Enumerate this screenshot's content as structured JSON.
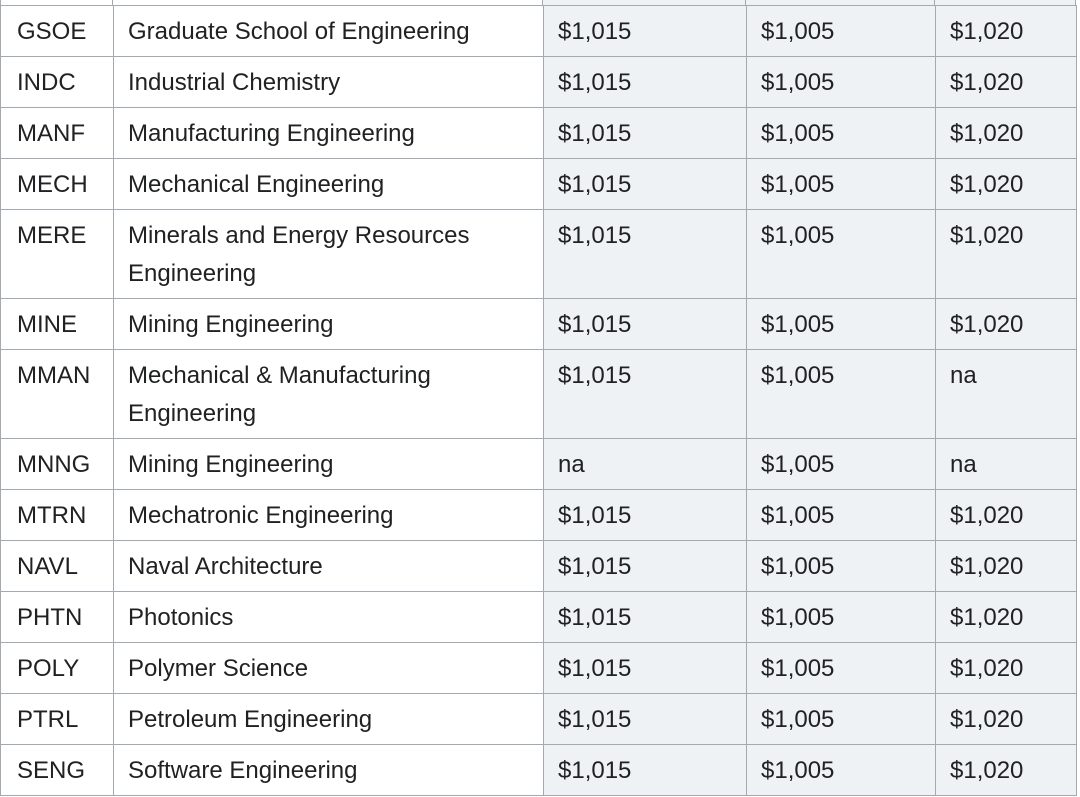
{
  "table": {
    "rows": [
      [
        "GSOE",
        "Graduate School of Engineering",
        "$1,015",
        "$1,005",
        "$1,020"
      ],
      [
        "INDC",
        "Industrial Chemistry",
        "$1,015",
        "$1,005",
        "$1,020"
      ],
      [
        "MANF",
        "Manufacturing Engineering",
        "$1,015",
        "$1,005",
        "$1,020"
      ],
      [
        "MECH",
        "Mechanical Engineering",
        "$1,015",
        "$1,005",
        "$1,020"
      ],
      [
        "MERE",
        "Minerals and Energy Resources Engineering",
        "$1,015",
        "$1,005",
        "$1,020"
      ],
      [
        "MINE",
        "Mining Engineering",
        "$1,015",
        "$1,005",
        "$1,020"
      ],
      [
        "MMAN",
        "Mechanical & Manufacturing Engineering",
        "$1,015",
        "$1,005",
        "na"
      ],
      [
        "MNNG",
        "Mining Engineering",
        "na",
        "$1,005",
        "na"
      ],
      [
        "MTRN",
        "Mechatronic Engineering",
        "$1,015",
        "$1,005",
        "$1,020"
      ],
      [
        "NAVL",
        "Naval Architecture",
        "$1,015",
        "$1,005",
        "$1,020"
      ],
      [
        "PHTN",
        "Photonics",
        "$1,015",
        "$1,005",
        "$1,020"
      ],
      [
        "POLY",
        "Polymer Science",
        "$1,015",
        "$1,005",
        "$1,020"
      ],
      [
        "PTRL",
        "Petroleum Engineering",
        "$1,015",
        "$1,005",
        "$1,020"
      ],
      [
        "SENG",
        "Software Engineering",
        "$1,015",
        "$1,005",
        "$1,020"
      ]
    ]
  }
}
